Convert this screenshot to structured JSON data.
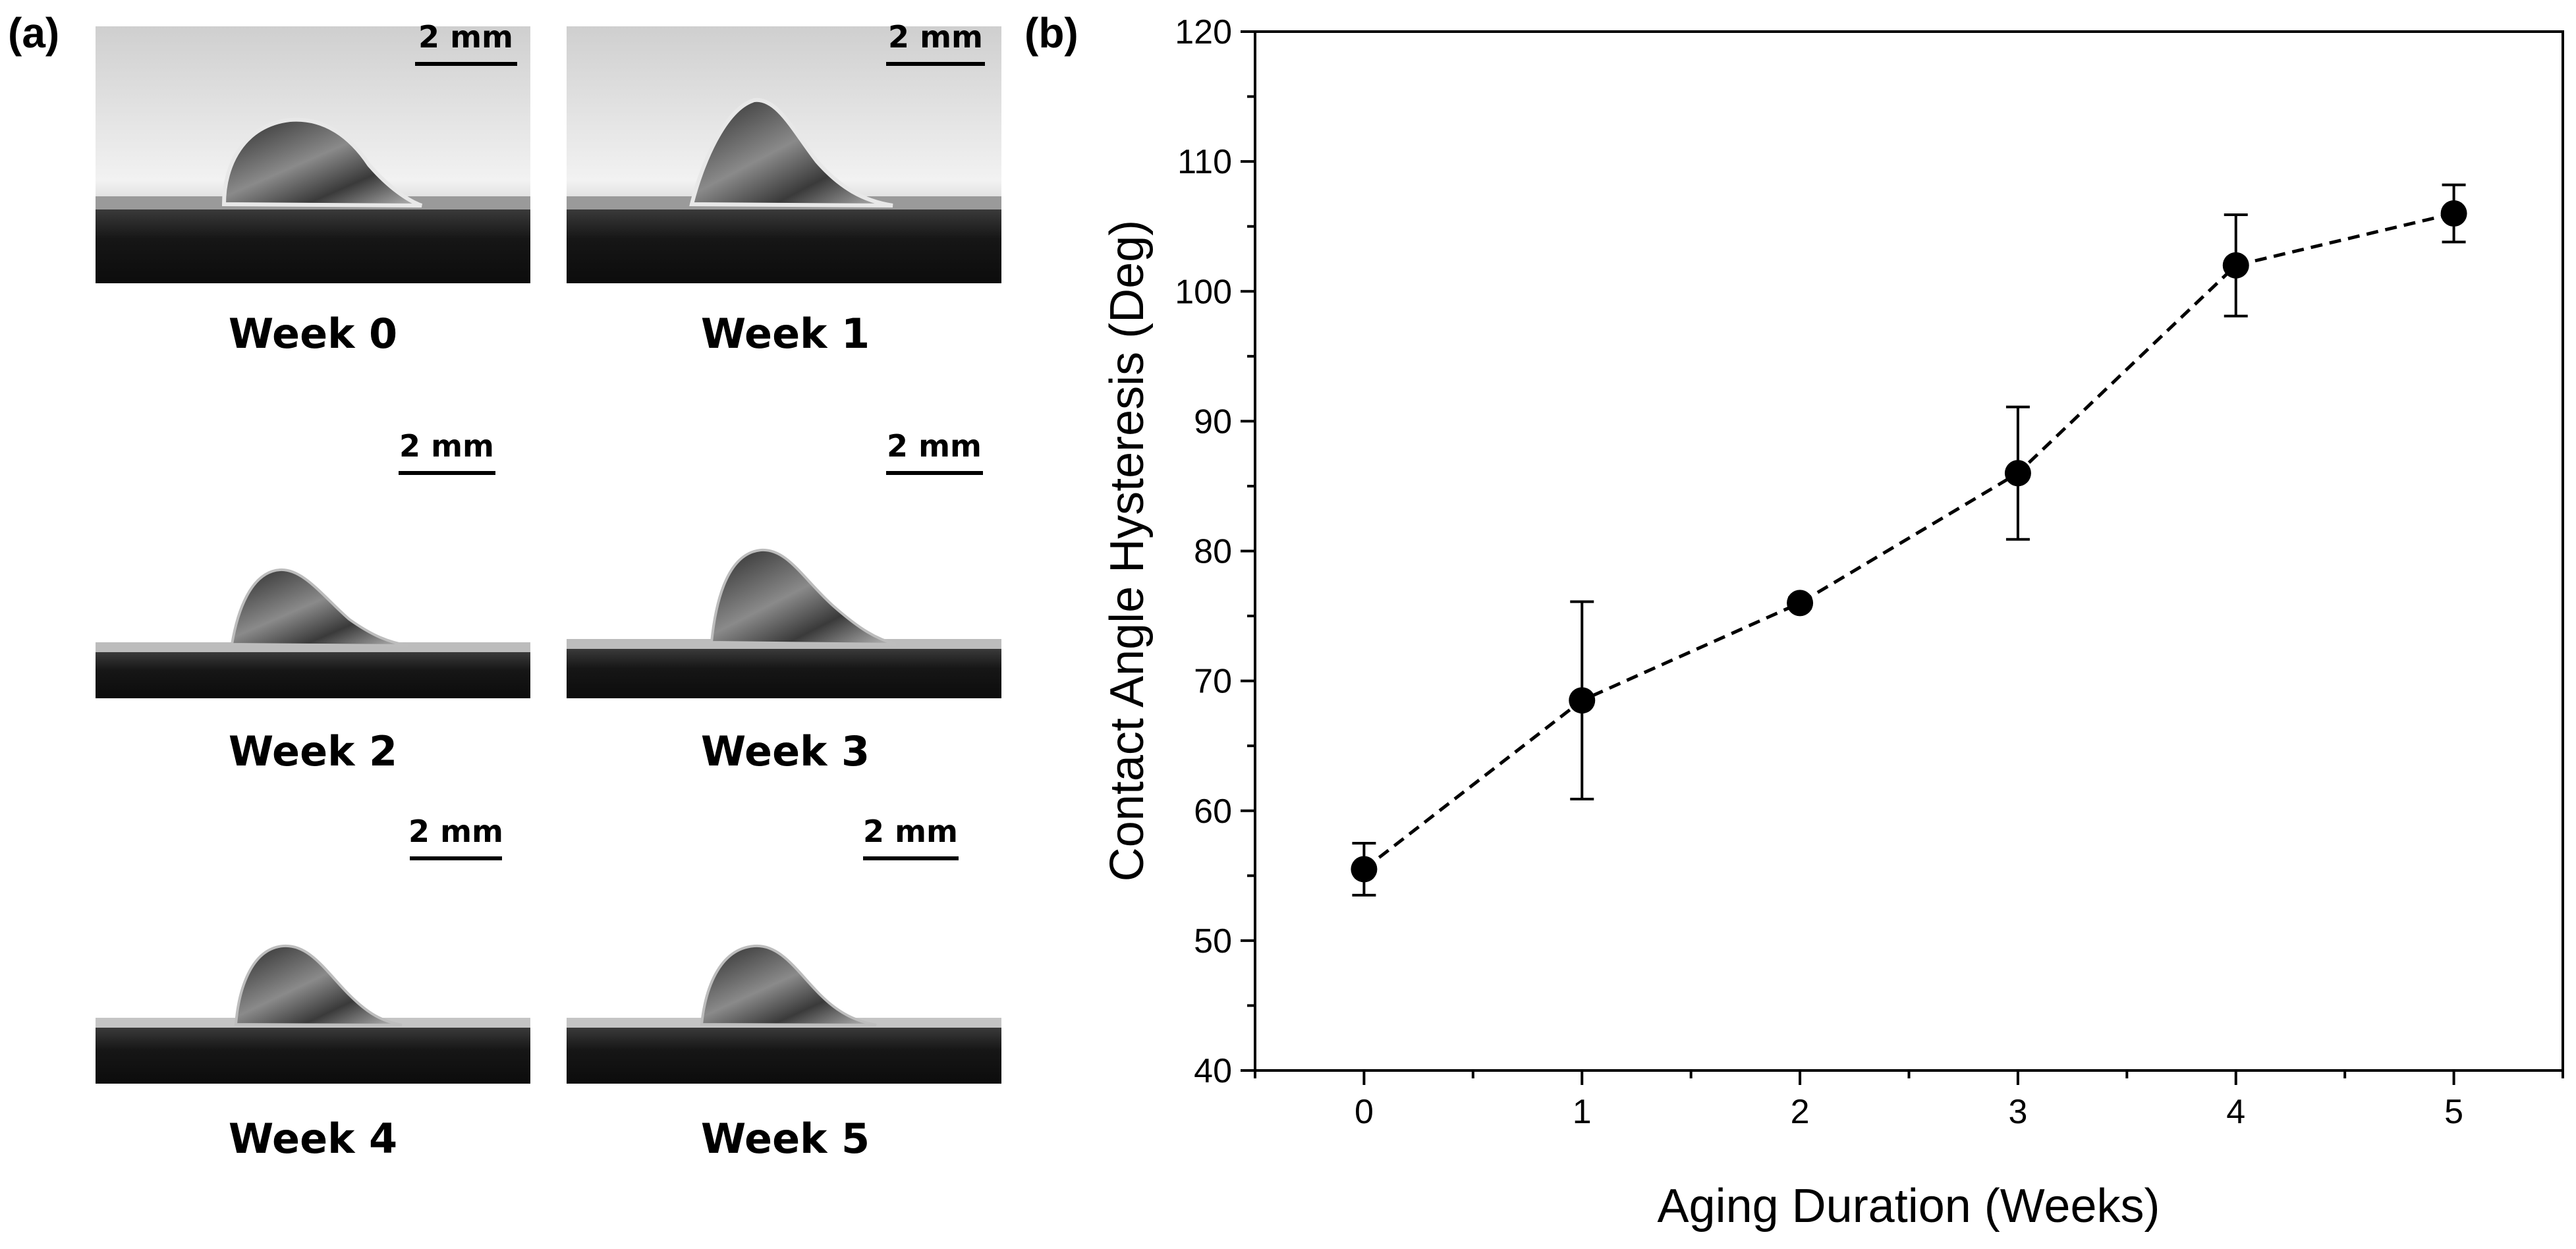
{
  "figure": {
    "panel_a_label": "(a)",
    "panel_b_label": "(b)"
  },
  "droplets": [
    {
      "label": "Week 0",
      "scale_bar": "2 mm"
    },
    {
      "label": "Week 1",
      "scale_bar": "2 mm"
    },
    {
      "label": "Week 2",
      "scale_bar": "2 mm"
    },
    {
      "label": "Week 3",
      "scale_bar": "2 mm"
    },
    {
      "label": "Week 4",
      "scale_bar": "2 mm"
    },
    {
      "label": "Week 5",
      "scale_bar": "2 mm"
    }
  ],
  "chart_data": {
    "type": "scatter",
    "style": "dashed line with circle markers and error bars",
    "title": "",
    "xlabel": "Aging Duration (Weeks)",
    "ylabel": "Contact Angle Hysteresis (Deg)",
    "xlim": [
      -0.5,
      5.5
    ],
    "ylim": [
      40,
      120
    ],
    "x_ticks": [
      0,
      1,
      2,
      3,
      4,
      5
    ],
    "y_ticks": [
      40,
      50,
      60,
      70,
      80,
      90,
      100,
      110,
      120
    ],
    "x": [
      0,
      1,
      2,
      3,
      4,
      5
    ],
    "y": [
      55.5,
      68.5,
      76,
      86,
      102,
      106
    ],
    "error": [
      2,
      7.6,
      0.4,
      5.1,
      3.9,
      2.2
    ],
    "color": "#000000"
  }
}
